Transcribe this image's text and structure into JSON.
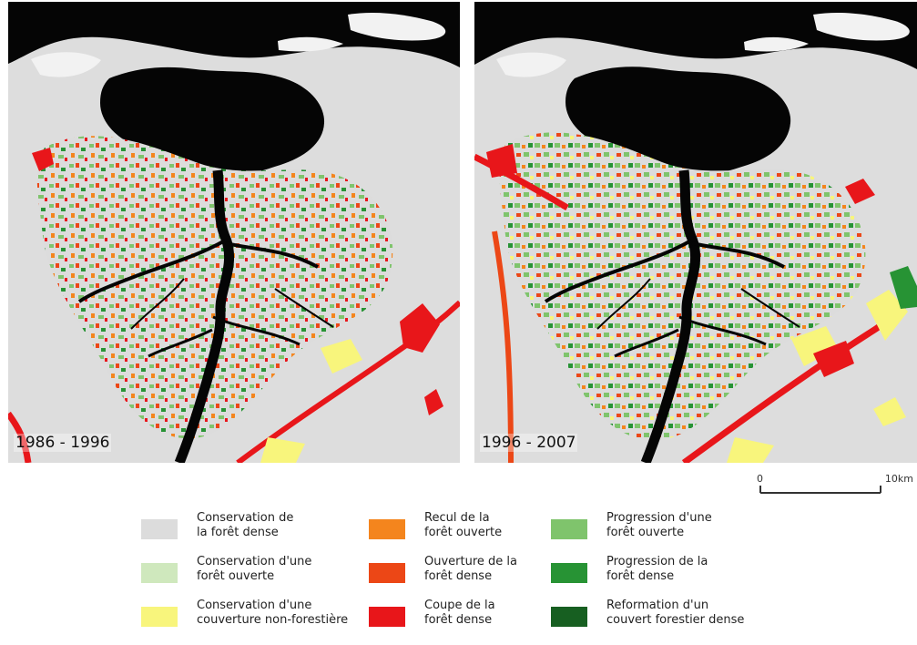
{
  "maps": [
    {
      "period": "1986 - 1996"
    },
    {
      "period": "1996 - 2007"
    }
  ],
  "scale": {
    "start_label": "0",
    "end_label": "10km"
  },
  "legend": [
    {
      "label": "Conservation de\nla forêt dense",
      "color": "#dcdcdc"
    },
    {
      "label": "Conservation d'une\nforêt ouverte",
      "color": "#cfe8bd"
    },
    {
      "label": "Conservation d'une\ncouverture non-forestière",
      "color": "#f8f57c"
    },
    {
      "label": "Recul de la\nforêt ouverte",
      "color": "#f4851d"
    },
    {
      "label": "Ouverture de la\nforêt dense",
      "color": "#ec4716"
    },
    {
      "label": "Coupe de la\nforêt dense",
      "color": "#e8161a"
    },
    {
      "label": "Progression d'une\nforêt ouverte",
      "color": "#7fc46c"
    },
    {
      "label": "Progression de la\nforêt dense",
      "color": "#279334"
    },
    {
      "label": "Reformation d'un\ncouvert forestier dense",
      "color": "#175f21"
    }
  ]
}
